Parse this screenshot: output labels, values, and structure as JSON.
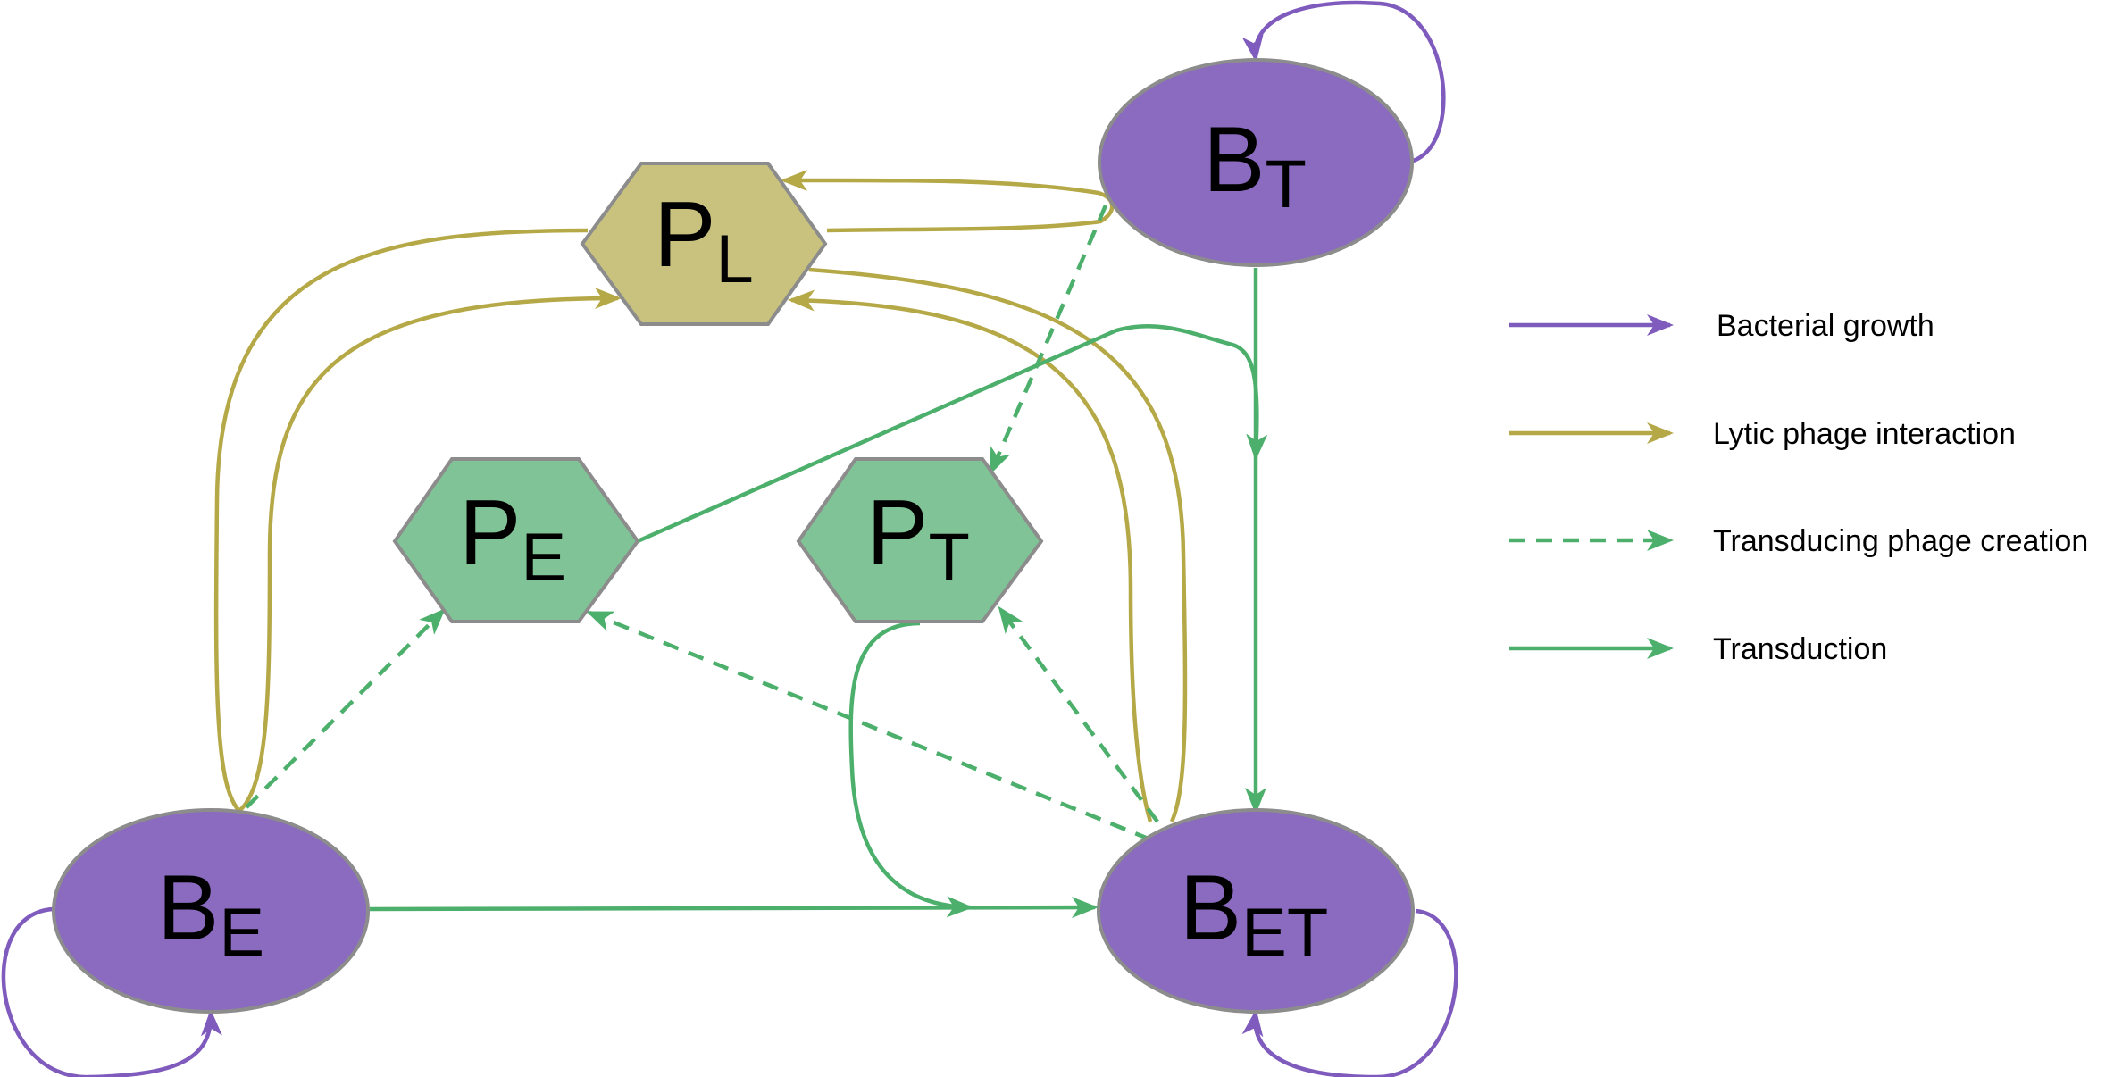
{
  "nodes": {
    "BT": {
      "main": "B",
      "sub": "T",
      "shape": "ellipse"
    },
    "PL": {
      "main": "P",
      "sub": "L",
      "shape": "hexagon"
    },
    "PE": {
      "main": "P",
      "sub": "E",
      "shape": "hexagon"
    },
    "PT": {
      "main": "P",
      "sub": "T",
      "shape": "hexagon"
    },
    "BE": {
      "main": "B",
      "sub": "E",
      "shape": "ellipse"
    },
    "BET": {
      "main": "B",
      "sub": "ET",
      "shape": "ellipse"
    }
  },
  "legend": [
    {
      "label": "Bacterial growth",
      "style": "solid",
      "color": "#7f5bbd"
    },
    {
      "label": "Lytic phage interaction",
      "style": "solid",
      "color": "#b5a847"
    },
    {
      "label": "Transducing phage creation",
      "style": "dashed",
      "color": "#4caf6c"
    },
    {
      "label": "Transduction",
      "style": "solid",
      "color": "#4caf6c"
    }
  ],
  "colors": {
    "bacteria_fill": "#8a6bbf",
    "lytic_phage_fill": "#c8c27e",
    "transducing_phage_fill": "#80c396",
    "node_stroke": "#8c8c8c",
    "growth": "#7f5bbd",
    "lytic": "#b5a847",
    "transduction": "#4caf6c"
  }
}
